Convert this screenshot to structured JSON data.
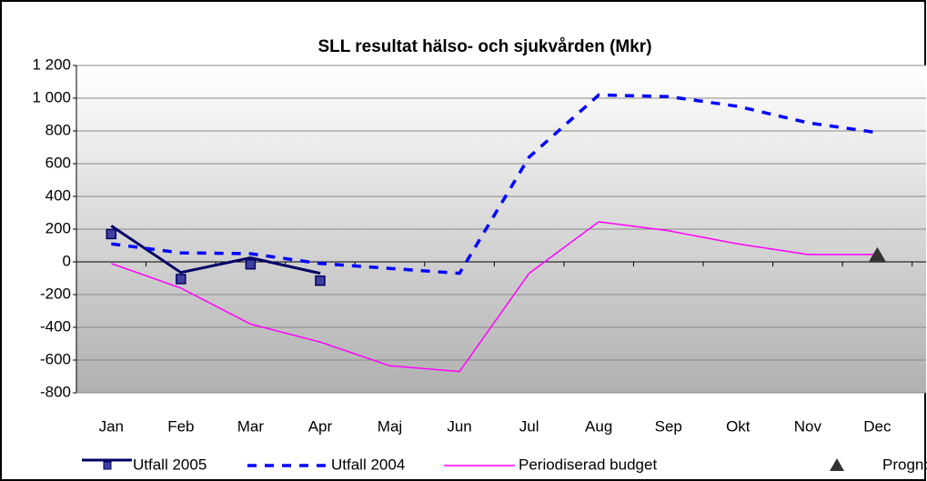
{
  "chart_data": {
    "type": "line",
    "title": "SLL resultat hälso- och sjukvården (Mkr)",
    "categories": [
      "Jan",
      "Feb",
      "Mar",
      "Apr",
      "Maj",
      "Jun",
      "Jul",
      "Aug",
      "Sep",
      "Okt",
      "Nov",
      "Dec"
    ],
    "series": [
      {
        "name": "Utfall 2005",
        "color": "#000066",
        "style": "solid-marker",
        "values": [
          220,
          -65,
          25,
          -70,
          null,
          null,
          null,
          null,
          null,
          null,
          null,
          null
        ],
        "marker_values": [
          170,
          -105,
          -15,
          -115,
          null,
          null,
          null,
          null,
          null,
          null,
          null,
          null
        ]
      },
      {
        "name": "Utfall 2004",
        "color": "#0000ff",
        "style": "dashed",
        "values": [
          110,
          55,
          50,
          -10,
          -40,
          -70,
          640,
          1020,
          1010,
          950,
          850,
          790
        ]
      },
      {
        "name": "Periodiserad budget",
        "color": "#ff00ff",
        "style": "thin",
        "values": [
          -10,
          -160,
          -380,
          -490,
          -635,
          -670,
          -70,
          245,
          190,
          110,
          45,
          45
        ]
      },
      {
        "name": "Prognos",
        "color": "#333333",
        "style": "triangle",
        "values": [
          null,
          null,
          null,
          null,
          null,
          null,
          null,
          null,
          null,
          null,
          null,
          35
        ]
      }
    ],
    "ylim": [
      -800,
      1200
    ],
    "yticks": [
      -800,
      -600,
      -400,
      -200,
      0,
      200,
      400,
      600,
      800,
      {
        "value": 1000,
        "label": "1 000"
      },
      {
        "value": 1200,
        "label": "1 200"
      }
    ],
    "grid": true,
    "legend": "bottom"
  }
}
